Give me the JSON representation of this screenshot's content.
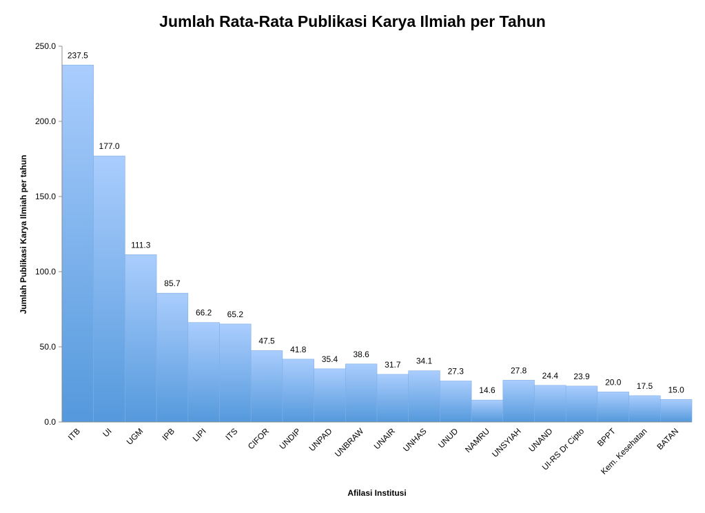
{
  "chart_data": {
    "type": "bar",
    "title": "Jumlah Rata-Rata Publikasi Karya Ilmiah per Tahun",
    "xlabel": "Afilasi Institusi",
    "ylabel": "Jumlah Publikasi Karya Ilmiah per tahun",
    "ylim": [
      0,
      250
    ],
    "yticks": [
      "0.0",
      "50.0",
      "100.0",
      "150.0",
      "200.0",
      "250.0"
    ],
    "categories": [
      "ITB",
      "UI",
      "UGM",
      "IPB",
      "LIPI",
      "ITS",
      "CIFOR",
      "UNDIP",
      "UNPAD",
      "UNBRAW",
      "UNAIR",
      "UNHAS",
      "UNUD",
      "NAMRU",
      "UNSYIAH",
      "UNAND",
      "UI-RS Dr Cipto",
      "BPPT",
      "Kem. Kesehatan",
      "BATAN"
    ],
    "values": [
      237.5,
      177.0,
      111.3,
      85.7,
      66.2,
      65.2,
      47.5,
      41.8,
      35.4,
      38.6,
      31.7,
      34.1,
      27.3,
      14.6,
      27.8,
      24.4,
      23.9,
      20.0,
      17.5,
      15.0
    ],
    "data_labels": [
      "237.5",
      "177.0",
      "111.3",
      "85.7",
      "66.2",
      "65.2",
      "47.5",
      "41.8",
      "35.4",
      "38.6",
      "31.7",
      "34.1",
      "27.3",
      "14.6",
      "27.8",
      "24.4",
      "23.9",
      "20.0",
      "17.5",
      "15.0"
    ],
    "grid": false,
    "legend": "none",
    "bar_color_top": "#aacdfd",
    "bar_color_bottom": "#5499dc"
  }
}
